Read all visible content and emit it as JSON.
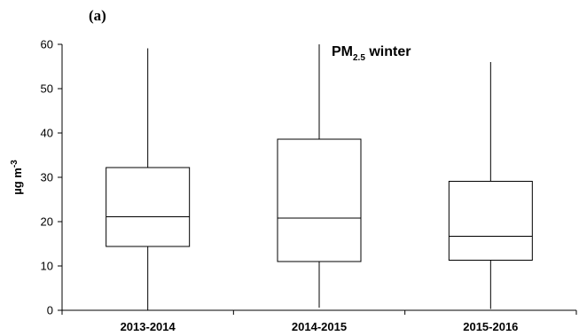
{
  "chart_data": {
    "type": "box",
    "panel_label": "(a)",
    "annotation": {
      "main": "PM",
      "subscript": "2.5",
      "suffix": " winter"
    },
    "ylabel": {
      "text": "µg m",
      "superscript": "-3"
    },
    "ylim": [
      0,
      60
    ],
    "yticks": [
      0,
      10,
      20,
      30,
      40,
      50,
      60
    ],
    "ytick_labels": [
      "0",
      "10",
      "20",
      "30",
      "40",
      "50",
      "60"
    ],
    "categories": [
      "2013-2014",
      "2014-2015",
      "2015-2016"
    ],
    "boxes": [
      {
        "category": "2013-2014",
        "whisker_low": 0,
        "q1": 14.4,
        "median": 21.1,
        "q3": 32.2,
        "whisker_high": 59.1
      },
      {
        "category": "2014-2015",
        "whisker_low": 0.6,
        "q1": 11.0,
        "median": 20.8,
        "q3": 38.6,
        "whisker_high": 60
      },
      {
        "category": "2015-2016",
        "whisker_low": 0.3,
        "q1": 11.3,
        "median": 16.7,
        "q3": 29.1,
        "whisker_high": 56.0
      }
    ],
    "grid": false,
    "legend": "none",
    "colors": {
      "stroke": "#000000",
      "fill": "#ffffff"
    }
  }
}
